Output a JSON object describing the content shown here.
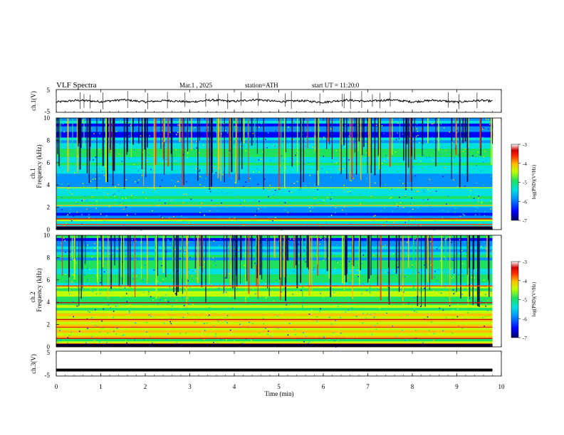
{
  "header": {
    "title": "VLF Spectra",
    "date": "Mar.1 , 2025",
    "station": "station=ATH",
    "start_ut": "start UT = 11:20:0"
  },
  "colors": {
    "colormap": [
      "#000060",
      "#0000ff",
      "#0090ff",
      "#00e0e0",
      "#20e060",
      "#c0ff00",
      "#ffc000",
      "#ff3000",
      "#d00000",
      "#ffffff"
    ]
  },
  "chart_data": [
    {
      "type": "line",
      "panel": "ch1-waveform",
      "ylabel": "ch.1(V)",
      "ylim": [
        -5,
        5
      ],
      "yticks": [
        "5",
        "-5"
      ],
      "xlim": [
        0,
        10
      ],
      "x": [
        0,
        0.5,
        1,
        1.5,
        2,
        2.5,
        3,
        3.5,
        4,
        4.5,
        5,
        5.5,
        6,
        6.5,
        7,
        7.5,
        8,
        8.5,
        9,
        9.5,
        9.8
      ],
      "y": [
        -0.5,
        0.3,
        -0.3,
        0.5,
        -0.4,
        0.2,
        -0.5,
        0.4,
        -0.2,
        0.6,
        -0.3,
        0.1,
        -0.6,
        0.4,
        -0.2,
        0.5,
        -0.4,
        0.3,
        -0.5,
        0.2,
        -0.1
      ]
    },
    {
      "type": "heatmap",
      "panel": "ch1-spectrogram",
      "ylabel": "ch.1 Frequency (kHz)",
      "ylabel_line1": "ch.1",
      "ylabel_line2": "Frequency (kHz)",
      "ylim": [
        0,
        10
      ],
      "yticks": [
        "0",
        "2",
        "4",
        "6",
        "8",
        "10"
      ],
      "xlim": [
        0,
        10
      ],
      "colorbar": {
        "label": "log(PSD)(V²/Hz)",
        "range": [
          -7,
          -3
        ],
        "ticks": [
          "-3",
          "-4",
          "-5",
          "-6",
          "-7"
        ]
      }
    },
    {
      "type": "heatmap",
      "panel": "ch2-spectrogram",
      "ylabel": "ch.2 Frequency (kHz)",
      "ylabel_line1": "ch.2",
      "ylabel_line2": "Frequency (kHz)",
      "ylim": [
        0,
        10
      ],
      "yticks": [
        "0",
        "2",
        "4",
        "6",
        "8",
        "10"
      ],
      "xlim": [
        0,
        10
      ],
      "colorbar": {
        "label": "log(PSD)(V²/Hz)",
        "range": [
          -7,
          -3
        ],
        "ticks": [
          "-3",
          "-4",
          "-5",
          "-6",
          "-7"
        ]
      }
    },
    {
      "type": "line",
      "panel": "ch3-waveform",
      "ylabel": "ch.3(V)",
      "ylim": [
        -5,
        5
      ],
      "yticks": [
        "5",
        "-5"
      ],
      "xlim": [
        0,
        10
      ],
      "x": [
        0,
        9.8
      ],
      "y": [
        -2.6,
        -2.6
      ]
    }
  ],
  "xaxis": {
    "label": "Time (min)",
    "ticks": [
      "0",
      "1",
      "2",
      "3",
      "4",
      "5",
      "6",
      "7",
      "8",
      "9",
      "10"
    ]
  }
}
